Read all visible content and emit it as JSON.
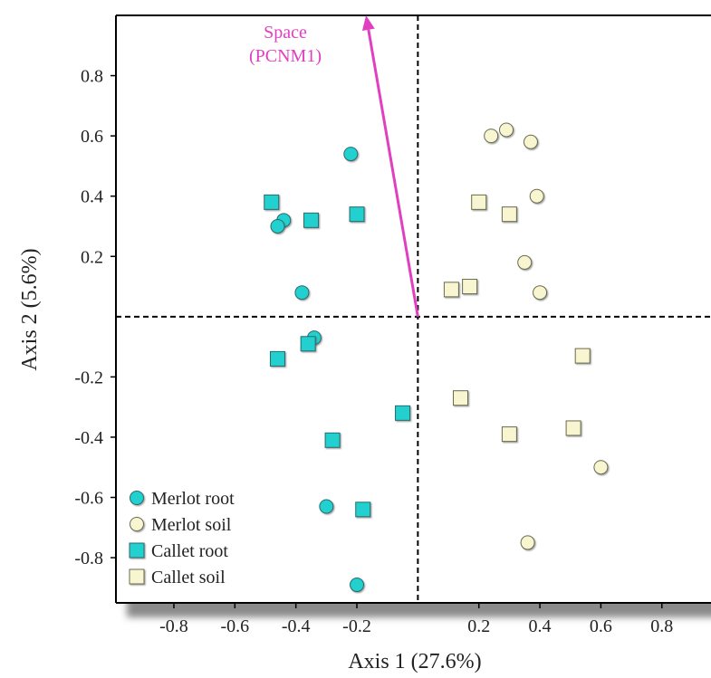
{
  "chart_data": {
    "type": "scatter",
    "xlabel": "Axis 1 (27.6%)",
    "ylabel": "Axis 2 (5.6%)",
    "xlim": [
      -0.99,
      0.97
    ],
    "ylim": [
      -0.95,
      1.0
    ],
    "x_ticks": [
      {
        "value": -0.8,
        "label": "-0.8"
      },
      {
        "value": -0.6,
        "label": "-0.6"
      },
      {
        "value": -0.4,
        "label": "-0.4"
      },
      {
        "value": -0.2,
        "label": "-0.2"
      },
      {
        "value": 0.2,
        "label": "0.2"
      },
      {
        "value": 0.4,
        "label": "0.4"
      },
      {
        "value": 0.6,
        "label": "0.6"
      },
      {
        "value": 0.8,
        "label": "0.8"
      }
    ],
    "y_ticks": [
      {
        "value": 0.8,
        "label": "0.8"
      },
      {
        "value": 0.6,
        "label": "0.6"
      },
      {
        "value": 0.4,
        "label": "0.4"
      },
      {
        "value": 0.2,
        "label": "0.2"
      },
      {
        "value": -0.2,
        "label": "-0.2"
      },
      {
        "value": -0.4,
        "label": "-0.4"
      },
      {
        "value": -0.6,
        "label": "-0.6"
      },
      {
        "value": -0.8,
        "label": "-0.8"
      }
    ],
    "reference_lines": {
      "x": 0,
      "y": 0,
      "style": "dashed"
    },
    "series": [
      {
        "name": "Merlot root",
        "marker": "circle",
        "color": "#20d0d0",
        "points": [
          {
            "x": -0.22,
            "y": 0.54
          },
          {
            "x": -0.44,
            "y": 0.32
          },
          {
            "x": -0.46,
            "y": 0.3
          },
          {
            "x": -0.38,
            "y": 0.08
          },
          {
            "x": -0.34,
            "y": -0.07
          },
          {
            "x": -0.3,
            "y": -0.63
          },
          {
            "x": -0.2,
            "y": -0.89
          }
        ]
      },
      {
        "name": "Merlot soil",
        "marker": "circle",
        "color": "#f8f6d0",
        "points": [
          {
            "x": 0.24,
            "y": 0.6
          },
          {
            "x": 0.29,
            "y": 0.62
          },
          {
            "x": 0.37,
            "y": 0.58
          },
          {
            "x": 0.39,
            "y": 0.4
          },
          {
            "x": 0.35,
            "y": 0.18
          },
          {
            "x": 0.4,
            "y": 0.08
          },
          {
            "x": 0.6,
            "y": -0.5
          },
          {
            "x": 0.36,
            "y": -0.75
          }
        ]
      },
      {
        "name": "Callet root",
        "marker": "square",
        "color": "#20d0d0",
        "points": [
          {
            "x": -0.48,
            "y": 0.38
          },
          {
            "x": -0.35,
            "y": 0.32
          },
          {
            "x": -0.2,
            "y": 0.34
          },
          {
            "x": -0.36,
            "y": -0.09
          },
          {
            "x": -0.46,
            "y": -0.14
          },
          {
            "x": -0.05,
            "y": -0.32
          },
          {
            "x": -0.28,
            "y": -0.41
          },
          {
            "x": -0.18,
            "y": -0.64
          }
        ]
      },
      {
        "name": "Callet soil",
        "marker": "square",
        "color": "#f8f6d0",
        "points": [
          {
            "x": 0.2,
            "y": 0.38
          },
          {
            "x": 0.3,
            "y": 0.34
          },
          {
            "x": 0.17,
            "y": 0.1
          },
          {
            "x": 0.11,
            "y": 0.09
          },
          {
            "x": 0.54,
            "y": -0.13
          },
          {
            "x": 0.14,
            "y": -0.27
          },
          {
            "x": 0.51,
            "y": -0.37
          },
          {
            "x": 0.3,
            "y": -0.39
          }
        ]
      }
    ],
    "vector": {
      "label_line1": "Space",
      "label_line2": "(PCNM1)",
      "from": {
        "x": 0,
        "y": 0
      },
      "to": {
        "x": -0.17,
        "y": 1.0
      },
      "color": "#e040c0"
    },
    "legend": {
      "placement": "bottom-left"
    }
  }
}
